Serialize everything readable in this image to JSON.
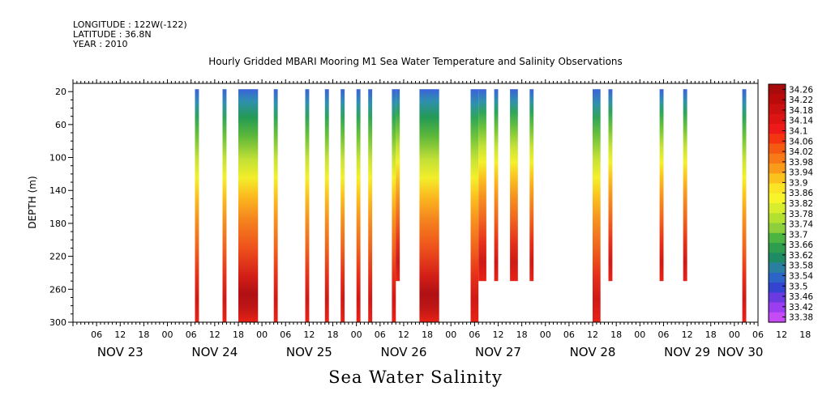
{
  "header": {
    "longitude": "LONGITUDE : 122W(-122)",
    "latitude": "LATITUDE : 36.8N",
    "year": "YEAR : 2010"
  },
  "chart_data": {
    "type": "heatmap",
    "title": "Hourly Gridded MBARI Mooring M1 Sea Water Temperature and Salinity Observations",
    "bottom_label": "Sea Water Salinity",
    "xlabel": "",
    "ylabel": "DEPTH (m)",
    "x_hour_ticks": [
      "06",
      "12",
      "18",
      "00",
      "06",
      "12",
      "18",
      "00",
      "06",
      "12",
      "18",
      "00",
      "06",
      "12",
      "18",
      "00",
      "06",
      "12",
      "18",
      "00",
      "06",
      "12",
      "18",
      "00",
      "06",
      "12",
      "18",
      "00",
      "06",
      "12",
      "18",
      "00"
    ],
    "x_day_labels": [
      "NOV 23",
      "NOV 24",
      "NOV 25",
      "NOV 26",
      "NOV 27",
      "NOV 28",
      "NOV 29",
      "NOV 30"
    ],
    "xlim_hours_from_nov23_00": [
      0,
      174
    ],
    "ylim": [
      300,
      10
    ],
    "y_ticks": [
      20,
      60,
      100,
      140,
      180,
      220,
      260,
      300
    ],
    "colorbar": {
      "labels": [
        "34.26",
        "34.22",
        "34.18",
        "34.14",
        "34.1",
        "34.06",
        "34.02",
        "33.98",
        "33.94",
        "33.9",
        "33.86",
        "33.82",
        "33.78",
        "33.74",
        "33.7",
        "33.66",
        "33.62",
        "33.58",
        "33.54",
        "33.5",
        "33.46",
        "33.42",
        "33.38"
      ],
      "min": 33.38,
      "max": 34.28
    },
    "data_columns": [
      {
        "start": "NOV 24 07:00",
        "end": "NOV 24 08:00",
        "depth_max": 300,
        "profile": "normal"
      },
      {
        "start": "NOV 24 14:00",
        "end": "NOV 24 15:00",
        "depth_max": 300,
        "profile": "normal"
      },
      {
        "start": "NOV 24 18:00",
        "end": "NOV 24 23:00",
        "depth_max": 300,
        "profile": "strong"
      },
      {
        "start": "NOV 25 03:00",
        "end": "NOV 25 04:00",
        "depth_max": 300,
        "profile": "normal"
      },
      {
        "start": "NOV 25 11:00",
        "end": "NOV 25 12:00",
        "depth_max": 300,
        "profile": "normal"
      },
      {
        "start": "NOV 25 16:00",
        "end": "NOV 25 17:00",
        "depth_max": 300,
        "profile": "normal"
      },
      {
        "start": "NOV 25 20:00",
        "end": "NOV 25 21:00",
        "depth_max": 300,
        "profile": "normal"
      },
      {
        "start": "NOV 26 00:00",
        "end": "NOV 26 01:00",
        "depth_max": 300,
        "profile": "normal"
      },
      {
        "start": "NOV 26 03:00",
        "end": "NOV 26 04:00",
        "depth_max": 300,
        "profile": "normal"
      },
      {
        "start": "NOV 26 09:00",
        "end": "NOV 26 10:00",
        "depth_max": 300,
        "profile": "normal"
      },
      {
        "start": "NOV 26 10:00",
        "end": "NOV 26 11:00",
        "depth_max": 250,
        "profile": "normal"
      },
      {
        "start": "NOV 26 16:00",
        "end": "NOV 26 21:00",
        "depth_max": 300,
        "profile": "strong"
      },
      {
        "start": "NOV 27 05:00",
        "end": "NOV 27 07:00",
        "depth_max": 300,
        "profile": "normal"
      },
      {
        "start": "NOV 27 07:00",
        "end": "NOV 27 09:00",
        "depth_max": 250,
        "profile": "normal"
      },
      {
        "start": "NOV 27 11:00",
        "end": "NOV 27 12:00",
        "depth_max": 250,
        "profile": "normal"
      },
      {
        "start": "NOV 27 15:00",
        "end": "NOV 27 17:00",
        "depth_max": 250,
        "profile": "normal"
      },
      {
        "start": "NOV 27 20:00",
        "end": "NOV 27 21:00",
        "depth_max": 250,
        "profile": "normal"
      },
      {
        "start": "NOV 28 12:00",
        "end": "NOV 28 14:00",
        "depth_max": 300,
        "profile": "normal"
      },
      {
        "start": "NOV 28 16:00",
        "end": "NOV 28 17:00",
        "depth_max": 250,
        "profile": "normal"
      },
      {
        "start": "NOV 29 05:00",
        "end": "NOV 29 06:00",
        "depth_max": 250,
        "profile": "normal"
      },
      {
        "start": "NOV 29 11:00",
        "end": "NOV 29 12:00",
        "depth_max": 250,
        "profile": "normal"
      },
      {
        "start": "NOV 30 02:00",
        "end": "NOV 30 03:00",
        "depth_max": 300,
        "profile": "normal"
      }
    ],
    "grid": false,
    "legend": "right colorbar"
  }
}
